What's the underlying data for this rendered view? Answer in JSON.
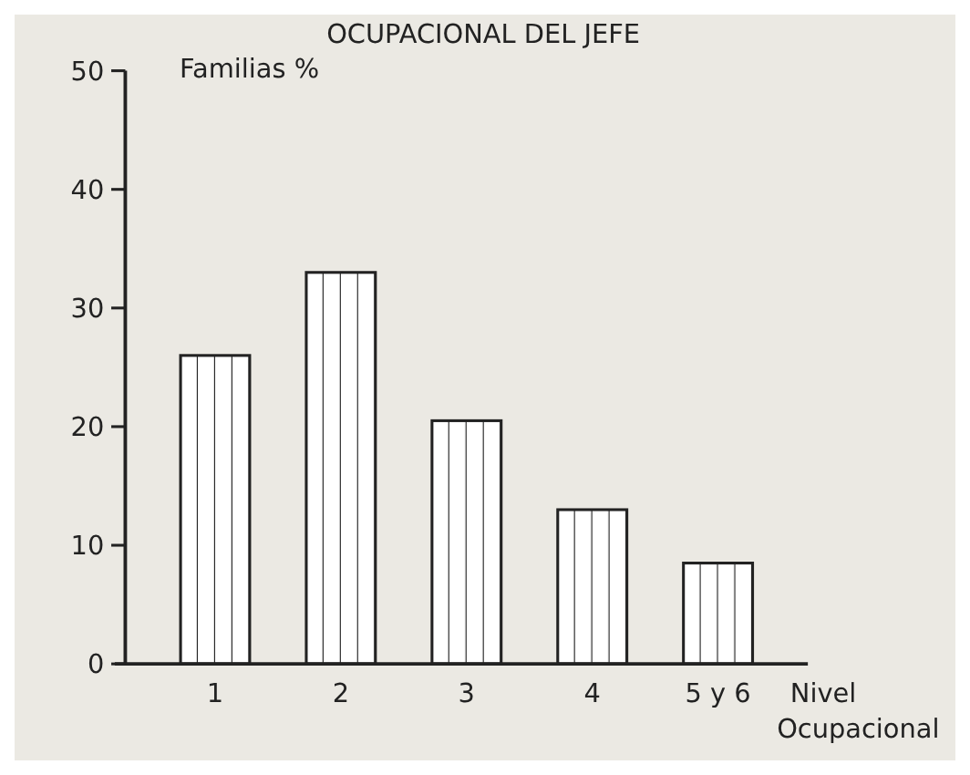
{
  "chart_data": {
    "type": "bar",
    "title": "OCUPACIONAL DEL JEFE",
    "ylabel": "Familias %",
    "xlabel": "Nivel Ocupacional",
    "categories": [
      "1",
      "2",
      "3",
      "4",
      "5 y 6"
    ],
    "values": [
      26,
      33,
      20.5,
      13,
      8.5
    ],
    "color": "#222222",
    "ylim": [
      0,
      50
    ],
    "yticks": [
      0,
      10,
      20,
      30,
      40,
      50
    ],
    "grid": false
  }
}
